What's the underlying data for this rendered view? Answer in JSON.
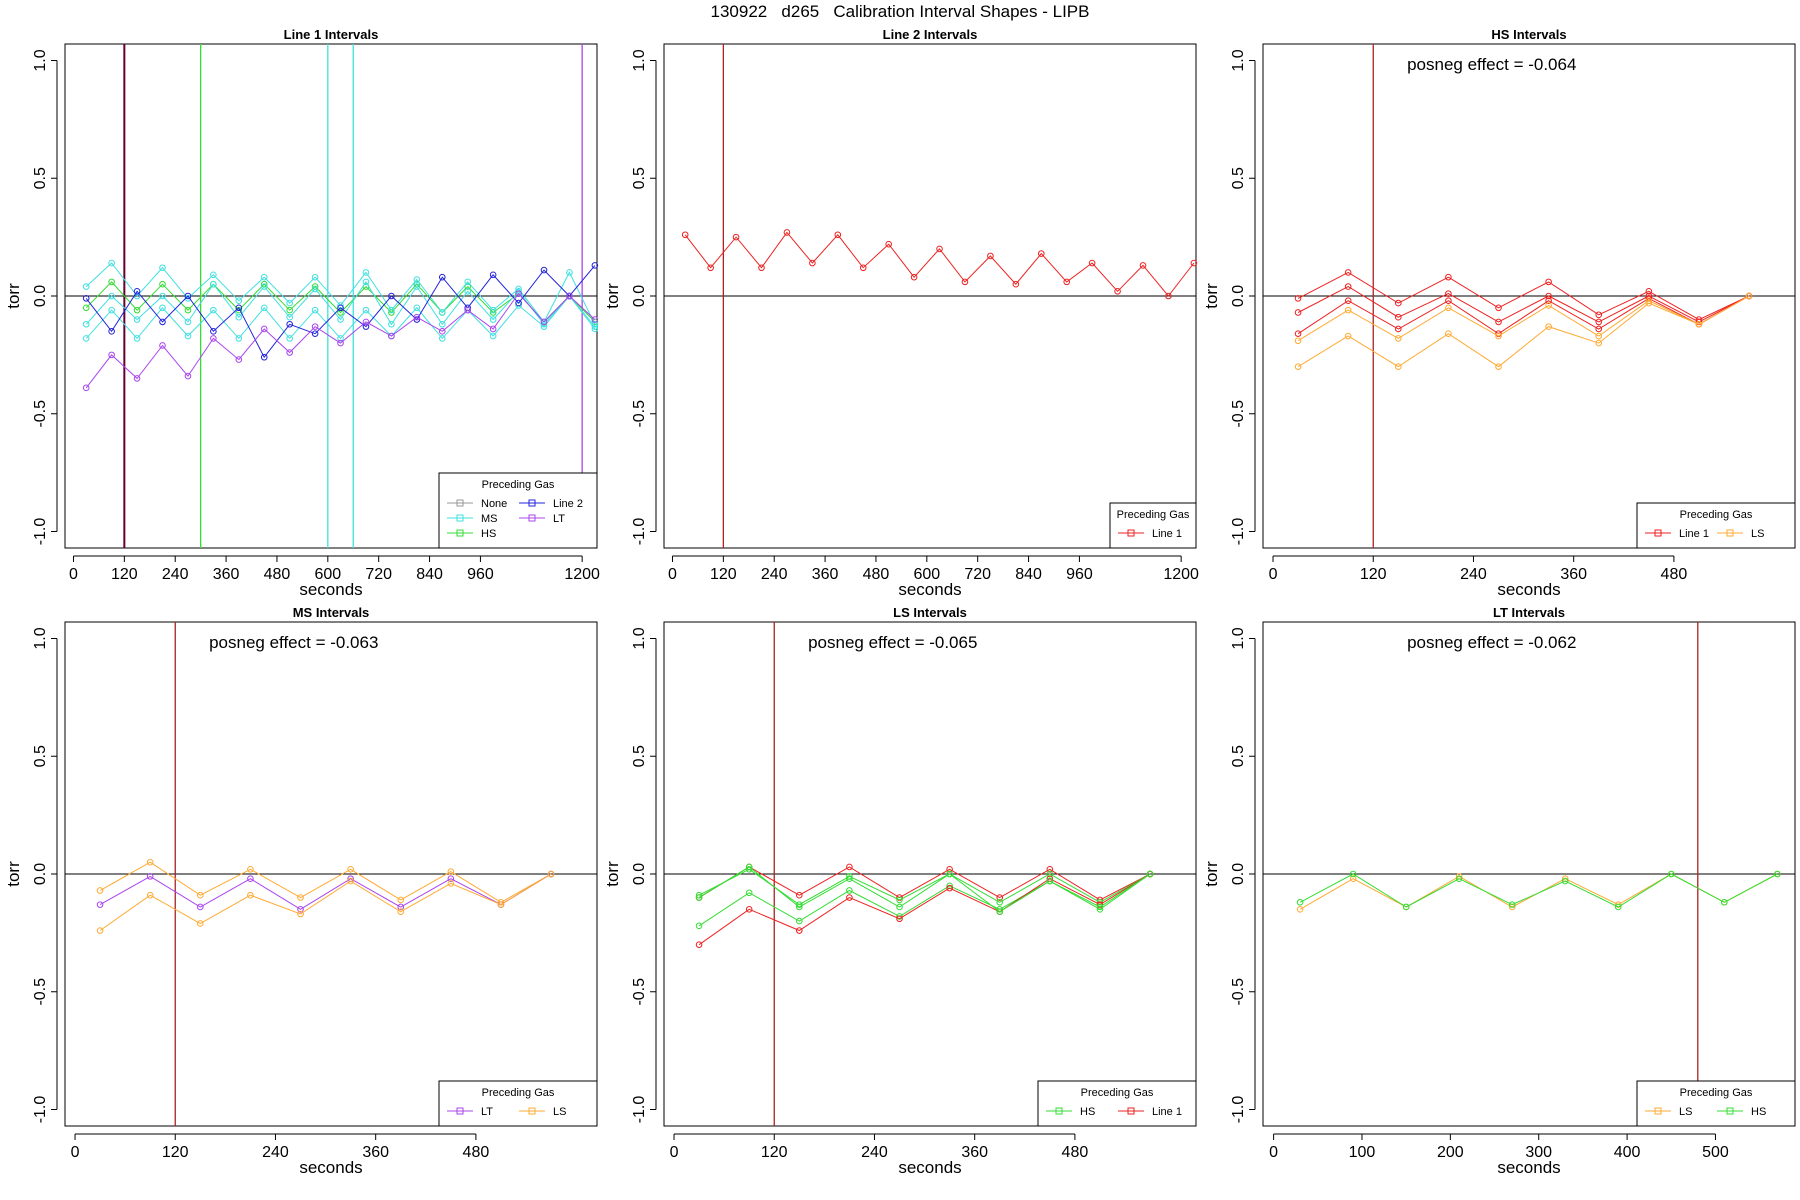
{
  "title": "130922   d265   Calibration Interval Shapes - LIPB",
  "colors": {
    "None": "#999999",
    "MS": "#40E0E0",
    "HS": "#33DD33",
    "Line 2": "#2222DD",
    "LT": "#AA44EE",
    "Line 1": "#EE2222",
    "LS": "#FFAA33",
    "vline_dark": "#660033",
    "vline_red": "#AA2222",
    "axis": "#000000"
  },
  "chart_data": [
    {
      "type": "line",
      "title": "Line 1 Intervals",
      "xlabel": "seconds",
      "ylabel": "torr",
      "xlim": [
        -20,
        1235
      ],
      "ylim": [
        -1.07,
        1.07
      ],
      "xticks": [
        0,
        120,
        240,
        360,
        480,
        600,
        720,
        840,
        960,
        1200
      ],
      "yticks": [
        -1.0,
        -0.5,
        0.0,
        0.5,
        1.0
      ],
      "ytick_labels": [
        "-1.0",
        "-0.5",
        "0.0",
        "0.5",
        "1.0"
      ],
      "annotation": "",
      "legend": {
        "title": "Preceding Gas",
        "position": "bottom-right",
        "cols": 2,
        "entries": [
          "None",
          "MS",
          "HS",
          "Line 2",
          "LT"
        ]
      },
      "vlines": [
        {
          "x": 120,
          "color": "vline_dark",
          "width": 2
        },
        {
          "x": 300,
          "color": "HS",
          "width": 1.3
        },
        {
          "x": 600,
          "color": "MS",
          "width": 1.3
        },
        {
          "x": 660,
          "color": "MS",
          "width": 1.3
        },
        {
          "x": 1200,
          "color": "LT",
          "width": 1.3
        }
      ],
      "series": [
        {
          "name": "HS",
          "x": [
            30,
            90,
            150,
            210,
            270,
            330,
            390,
            450,
            510,
            570,
            630,
            690,
            750,
            810,
            870,
            930,
            990,
            1050,
            1110,
            1170,
            1230
          ],
          "y": [
            -0.05,
            0.06,
            -0.06,
            0.05,
            -0.06,
            0.05,
            -0.06,
            0.05,
            -0.06,
            0.04,
            -0.07,
            0.04,
            -0.07,
            0.05,
            -0.07,
            0.04,
            -0.07,
            0.01,
            -0.11,
            0.0,
            -0.11
          ]
        },
        {
          "name": "MS",
          "x": [
            30,
            90,
            150,
            210,
            270,
            330,
            390,
            450,
            510,
            570,
            630,
            690,
            750,
            810,
            870,
            930,
            990,
            1050,
            1110,
            1170,
            1230
          ],
          "y": [
            0.04,
            0.14,
            0.0,
            0.12,
            -0.01,
            0.09,
            -0.02,
            0.08,
            -0.03,
            0.08,
            -0.04,
            0.1,
            -0.06,
            0.07,
            -0.07,
            0.06,
            -0.06,
            0.03,
            -0.11,
            0.1,
            -0.12
          ]
        },
        {
          "name": "MS",
          "x": [
            30,
            90,
            150,
            210,
            270,
            330,
            390,
            450,
            510,
            570,
            630,
            690,
            750,
            810,
            870,
            930,
            990,
            1050,
            1110,
            1170,
            1230
          ],
          "y": [
            -0.12,
            0.0,
            -0.1,
            0.0,
            -0.11,
            0.05,
            -0.09,
            0.04,
            -0.09,
            0.03,
            -0.1,
            0.06,
            -0.12,
            0.04,
            -0.12,
            0.02,
            -0.1,
            0.02,
            -0.12,
            0.0,
            -0.14
          ]
        },
        {
          "name": "MS",
          "x": [
            30,
            90,
            150,
            210,
            270,
            330,
            390,
            450,
            510,
            570,
            630,
            690,
            750,
            810,
            870,
            930,
            990,
            1050,
            1110,
            1170,
            1230
          ],
          "y": [
            -0.18,
            -0.06,
            -0.18,
            -0.05,
            -0.17,
            -0.06,
            -0.18,
            -0.05,
            -0.18,
            -0.06,
            -0.18,
            -0.06,
            -0.17,
            -0.05,
            -0.18,
            -0.06,
            -0.17,
            -0.04,
            -0.13,
            0.0,
            -0.13
          ]
        },
        {
          "name": "Line 2",
          "x": [
            30,
            90,
            150,
            210,
            270,
            330,
            390,
            450,
            510,
            570,
            630,
            690,
            750,
            810,
            870,
            930,
            990,
            1050,
            1110,
            1170,
            1230
          ],
          "y": [
            -0.01,
            -0.15,
            0.02,
            -0.11,
            0.0,
            -0.15,
            -0.05,
            -0.26,
            -0.12,
            -0.16,
            -0.05,
            -0.13,
            0.0,
            -0.1,
            0.08,
            -0.05,
            0.09,
            -0.03,
            0.11,
            0.0,
            0.13
          ]
        },
        {
          "name": "LT",
          "x": [
            30,
            90,
            150,
            210,
            270,
            330,
            390,
            450,
            510,
            570,
            630,
            690,
            750,
            810,
            870,
            930,
            990,
            1050,
            1110,
            1170,
            1230
          ],
          "y": [
            -0.39,
            -0.25,
            -0.35,
            -0.21,
            -0.34,
            -0.18,
            -0.27,
            -0.14,
            -0.24,
            -0.13,
            -0.2,
            -0.11,
            -0.17,
            -0.09,
            -0.15,
            -0.06,
            -0.14,
            0.01,
            -0.11,
            0.0,
            -0.1
          ]
        }
      ]
    },
    {
      "type": "line",
      "title": "Line 2 Intervals",
      "xlabel": "seconds",
      "ylabel": "torr",
      "xlim": [
        -20,
        1235
      ],
      "ylim": [
        -1.07,
        1.07
      ],
      "xticks": [
        0,
        120,
        240,
        360,
        480,
        600,
        720,
        840,
        960,
        1200
      ],
      "yticks": [
        -1.0,
        -0.5,
        0.0,
        0.5,
        1.0
      ],
      "ytick_labels": [
        "-1.0",
        "-0.5",
        "0.0",
        "0.5",
        "1.0"
      ],
      "annotation": "",
      "legend": {
        "title": "Preceding Gas",
        "position": "bottom-right",
        "cols": 1,
        "entries": [
          "Line 1"
        ]
      },
      "vlines": [
        {
          "x": 120,
          "color": "vline_red",
          "width": 1.3
        }
      ],
      "series": [
        {
          "name": "Line 1",
          "x": [
            30,
            90,
            150,
            210,
            270,
            330,
            390,
            450,
            510,
            570,
            630,
            690,
            750,
            810,
            870,
            930,
            990,
            1050,
            1110,
            1170,
            1230
          ],
          "y": [
            0.26,
            0.12,
            0.25,
            0.12,
            0.27,
            0.14,
            0.26,
            0.12,
            0.22,
            0.08,
            0.2,
            0.06,
            0.17,
            0.05,
            0.18,
            0.06,
            0.14,
            0.02,
            0.13,
            0.0,
            0.14
          ]
        }
      ]
    },
    {
      "type": "line",
      "title": "HS Intervals",
      "xlabel": "seconds",
      "ylabel": "torr",
      "xlim": [
        -12,
        625
      ],
      "ylim": [
        -1.07,
        1.07
      ],
      "xticks": [
        0,
        120,
        240,
        360,
        480
      ],
      "yticks": [
        -1.0,
        -0.5,
        0.0,
        0.5,
        1.0
      ],
      "ytick_labels": [
        "-1.0",
        "-0.5",
        "0.0",
        "0.5",
        "1.0"
      ],
      "annotation": "posneg effect = -0.064",
      "legend": {
        "title": "Preceding Gas",
        "position": "bottom-right",
        "cols": 2,
        "entries": [
          "Line 1",
          "LS"
        ]
      },
      "vlines": [
        {
          "x": 120,
          "color": "vline_red",
          "width": 1.3
        }
      ],
      "series": [
        {
          "name": "Line 1",
          "x": [
            30,
            90,
            150,
            210,
            270,
            330,
            390,
            450,
            510,
            570
          ],
          "y": [
            -0.01,
            0.1,
            -0.03,
            0.08,
            -0.05,
            0.06,
            -0.08,
            0.02,
            -0.1,
            0.0
          ]
        },
        {
          "name": "Line 1",
          "x": [
            30,
            90,
            150,
            210,
            270,
            330,
            390,
            450,
            510,
            570
          ],
          "y": [
            -0.07,
            0.04,
            -0.09,
            0.01,
            -0.11,
            0.0,
            -0.11,
            0.0,
            -0.11,
            0.0
          ]
        },
        {
          "name": "Line 1",
          "x": [
            30,
            90,
            150,
            210,
            270,
            330,
            390,
            450,
            510,
            570
          ],
          "y": [
            -0.16,
            -0.02,
            -0.14,
            -0.02,
            -0.16,
            -0.02,
            -0.14,
            -0.01,
            -0.12,
            0.0
          ]
        },
        {
          "name": "LS",
          "x": [
            30,
            90,
            150,
            210,
            270,
            330,
            390,
            450,
            510,
            570
          ],
          "y": [
            -0.19,
            -0.06,
            -0.18,
            -0.05,
            -0.17,
            -0.04,
            -0.17,
            -0.02,
            -0.12,
            0.0
          ]
        },
        {
          "name": "LS",
          "x": [
            30,
            90,
            150,
            210,
            270,
            330,
            390,
            450,
            510,
            570
          ],
          "y": [
            -0.3,
            -0.17,
            -0.3,
            -0.16,
            -0.3,
            -0.13,
            -0.2,
            -0.03,
            -0.12,
            0.0
          ]
        }
      ]
    },
    {
      "type": "line",
      "title": "MS Intervals",
      "xlabel": "seconds",
      "ylabel": "torr",
      "xlim": [
        -12,
        625
      ],
      "ylim": [
        -1.07,
        1.07
      ],
      "xticks": [
        0,
        120,
        240,
        360,
        480
      ],
      "yticks": [
        -1.0,
        -0.5,
        0.0,
        0.5,
        1.0
      ],
      "ytick_labels": [
        "-1.0",
        "-0.5",
        "0.0",
        "0.5",
        "1.0"
      ],
      "annotation": "posneg effect = -0.063",
      "legend": {
        "title": "Preceding Gas",
        "position": "bottom-right",
        "cols": 2,
        "entries": [
          "LT",
          "LS"
        ]
      },
      "vlines": [
        {
          "x": 120,
          "color": "vline_red",
          "width": 1.3
        }
      ],
      "series": [
        {
          "name": "LS",
          "x": [
            30,
            90,
            150,
            210,
            270,
            330,
            390,
            450,
            510,
            570
          ],
          "y": [
            -0.07,
            0.05,
            -0.09,
            0.02,
            -0.1,
            0.02,
            -0.11,
            0.01,
            -0.12,
            0.0
          ]
        },
        {
          "name": "LT",
          "x": [
            30,
            90,
            150,
            210,
            270,
            330,
            390,
            450,
            510,
            570
          ],
          "y": [
            -0.13,
            -0.01,
            -0.14,
            -0.02,
            -0.15,
            -0.02,
            -0.14,
            -0.02,
            -0.13,
            0.0
          ]
        },
        {
          "name": "LS",
          "x": [
            30,
            90,
            150,
            210,
            270,
            330,
            390,
            450,
            510,
            570
          ],
          "y": [
            -0.24,
            -0.09,
            -0.21,
            -0.09,
            -0.17,
            -0.03,
            -0.16,
            -0.04,
            -0.13,
            0.0
          ]
        }
      ]
    },
    {
      "type": "line",
      "title": "LS Intervals",
      "xlabel": "seconds",
      "ylabel": "torr",
      "xlim": [
        -12,
        625
      ],
      "ylim": [
        -1.07,
        1.07
      ],
      "xticks": [
        0,
        120,
        240,
        360,
        480
      ],
      "yticks": [
        -1.0,
        -0.5,
        0.0,
        0.5,
        1.0
      ],
      "ytick_labels": [
        "-1.0",
        "-0.5",
        "0.0",
        "0.5",
        "1.0"
      ],
      "annotation": "posneg effect = -0.065",
      "legend": {
        "title": "Preceding Gas",
        "position": "bottom-right",
        "cols": 2,
        "entries": [
          "HS",
          "Line 1"
        ]
      },
      "vlines": [
        {
          "x": 120,
          "color": "vline_red",
          "width": 1.3
        }
      ],
      "series": [
        {
          "name": "Line 1",
          "x": [
            30,
            90,
            150,
            210,
            270,
            330,
            390,
            450,
            510,
            570
          ],
          "y": [
            -0.1,
            0.03,
            -0.09,
            0.03,
            -0.1,
            0.02,
            -0.1,
            0.02,
            -0.11,
            0.0
          ]
        },
        {
          "name": "HS",
          "x": [
            30,
            90,
            150,
            210,
            270,
            330,
            390,
            450,
            510,
            570
          ],
          "y": [
            -0.09,
            0.02,
            -0.13,
            -0.01,
            -0.11,
            0.0,
            -0.12,
            0.0,
            -0.12,
            0.0
          ]
        },
        {
          "name": "HS",
          "x": [
            30,
            90,
            150,
            210,
            270,
            330,
            390,
            450,
            510,
            570
          ],
          "y": [
            -0.22,
            -0.08,
            -0.2,
            -0.07,
            -0.18,
            -0.05,
            -0.15,
            -0.03,
            -0.15,
            0.0
          ]
        },
        {
          "name": "Line 1",
          "x": [
            30,
            90,
            150,
            210,
            270,
            330,
            390,
            450,
            510,
            570
          ],
          "y": [
            -0.3,
            -0.15,
            -0.24,
            -0.1,
            -0.19,
            -0.06,
            -0.16,
            -0.02,
            -0.13,
            0.0
          ]
        },
        {
          "name": "HS",
          "x": [
            30,
            90,
            150,
            210,
            270,
            330,
            390,
            450,
            510,
            570
          ],
          "y": [
            -0.1,
            0.03,
            -0.14,
            -0.02,
            -0.14,
            0.0,
            -0.16,
            -0.03,
            -0.14,
            0.0
          ]
        }
      ]
    },
    {
      "type": "line",
      "title": "LT Intervals",
      "xlabel": "seconds",
      "ylabel": "torr",
      "xlim": [
        -12,
        590
      ],
      "ylim": [
        -1.07,
        1.07
      ],
      "xticks": [
        0,
        100,
        200,
        300,
        400,
        500
      ],
      "yticks": [
        -1.0,
        -0.5,
        0.0,
        0.5,
        1.0
      ],
      "ytick_labels": [
        "-1.0",
        "-0.5",
        "0.0",
        "0.5",
        "1.0"
      ],
      "annotation": "posneg effect = -0.062",
      "legend": {
        "title": "Preceding Gas",
        "position": "bottom-right",
        "cols": 2,
        "entries": [
          "LS",
          "HS"
        ]
      },
      "vlines": [
        {
          "x": 480,
          "color": "vline_red",
          "width": 1.3
        }
      ],
      "series": [
        {
          "name": "LS",
          "x": [
            30,
            90,
            150,
            210,
            270,
            330,
            390,
            450,
            510,
            570
          ],
          "y": [
            -0.15,
            -0.02,
            -0.14,
            -0.01,
            -0.14,
            -0.02,
            -0.13,
            0.0,
            -0.12,
            0.0
          ]
        },
        {
          "name": "HS",
          "x": [
            30,
            90,
            150,
            210,
            270,
            330,
            390,
            450,
            510,
            570
          ],
          "y": [
            -0.12,
            0.0,
            -0.14,
            -0.02,
            -0.13,
            -0.03,
            -0.14,
            0.0,
            -0.12,
            0.0
          ]
        }
      ]
    }
  ]
}
